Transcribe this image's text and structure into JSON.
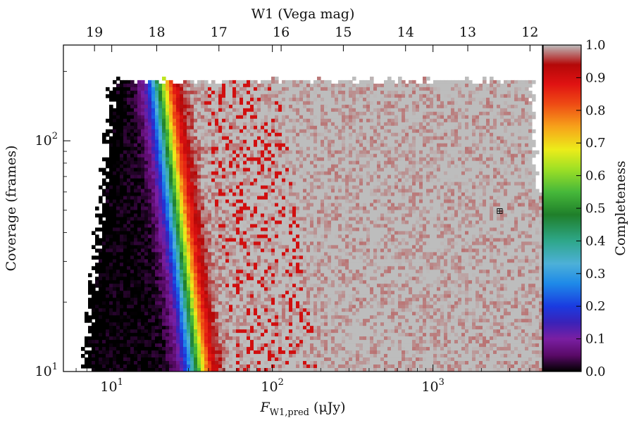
{
  "chart_data": {
    "type": "heatmap",
    "x_axis": {
      "label_var": "F",
      "label_sub": "W1,pred",
      "label_unit": " (μJy)",
      "scale": "log",
      "range": [
        5,
        4800
      ],
      "ticks": [
        {
          "value": 10,
          "base": "10",
          "exp": "1"
        },
        {
          "value": 100,
          "base": "10",
          "exp": "2"
        },
        {
          "value": 1000,
          "base": "10",
          "exp": "3"
        }
      ]
    },
    "top_axis": {
      "label": "W1 (Vega mag)",
      "ticks": [
        {
          "value": 19,
          "label": "19"
        },
        {
          "value": 18,
          "label": "18"
        },
        {
          "value": 17,
          "label": "17"
        },
        {
          "value": 16,
          "label": "16"
        },
        {
          "value": 15,
          "label": "15"
        },
        {
          "value": 14,
          "label": "14"
        },
        {
          "value": 13,
          "label": "13"
        },
        {
          "value": 12,
          "label": "12"
        }
      ]
    },
    "y_axis": {
      "label": "Coverage (frames)",
      "scale": "log",
      "range": [
        10,
        260
      ],
      "ticks": [
        {
          "value": 10,
          "base": "10",
          "exp": "1"
        },
        {
          "value": 100,
          "base": "10",
          "exp": "2"
        }
      ]
    },
    "colorbar": {
      "label": "Completeness",
      "range": [
        0,
        1
      ],
      "ticks": [
        "0.0",
        "0.1",
        "0.2",
        "0.3",
        "0.4",
        "0.5",
        "0.6",
        "0.7",
        "0.8",
        "0.9",
        "1.0"
      ],
      "colormap": [
        {
          "v": 0.0,
          "color": "#000000"
        },
        {
          "v": 0.05,
          "color": "#5a0a68"
        },
        {
          "v": 0.1,
          "color": "#7a1fa2"
        },
        {
          "v": 0.15,
          "color": "#3a22b8"
        },
        {
          "v": 0.2,
          "color": "#1a3be0"
        },
        {
          "v": 0.27,
          "color": "#1e8ae8"
        },
        {
          "v": 0.33,
          "color": "#4db0d8"
        },
        {
          "v": 0.4,
          "color": "#2ea78a"
        },
        {
          "v": 0.48,
          "color": "#1f7f2a"
        },
        {
          "v": 0.55,
          "color": "#46b83a"
        },
        {
          "v": 0.62,
          "color": "#9ee025"
        },
        {
          "v": 0.68,
          "color": "#ecec1a"
        },
        {
          "v": 0.75,
          "color": "#f7a21a"
        },
        {
          "v": 0.82,
          "color": "#ee4a14"
        },
        {
          "v": 0.88,
          "color": "#e01212"
        },
        {
          "v": 0.94,
          "color": "#b40808"
        },
        {
          "v": 1.0,
          "color": "#bdbdbd"
        }
      ]
    },
    "completeness_model": {
      "flux_50pct_at_10frames": 34,
      "flux_50pct_at_100frames": 22,
      "transition_width_dex": 0.21,
      "upper_coverage_limit": 180
    },
    "marker": {
      "flux": 2600,
      "coverage": 50,
      "symbol": "⊞"
    }
  }
}
